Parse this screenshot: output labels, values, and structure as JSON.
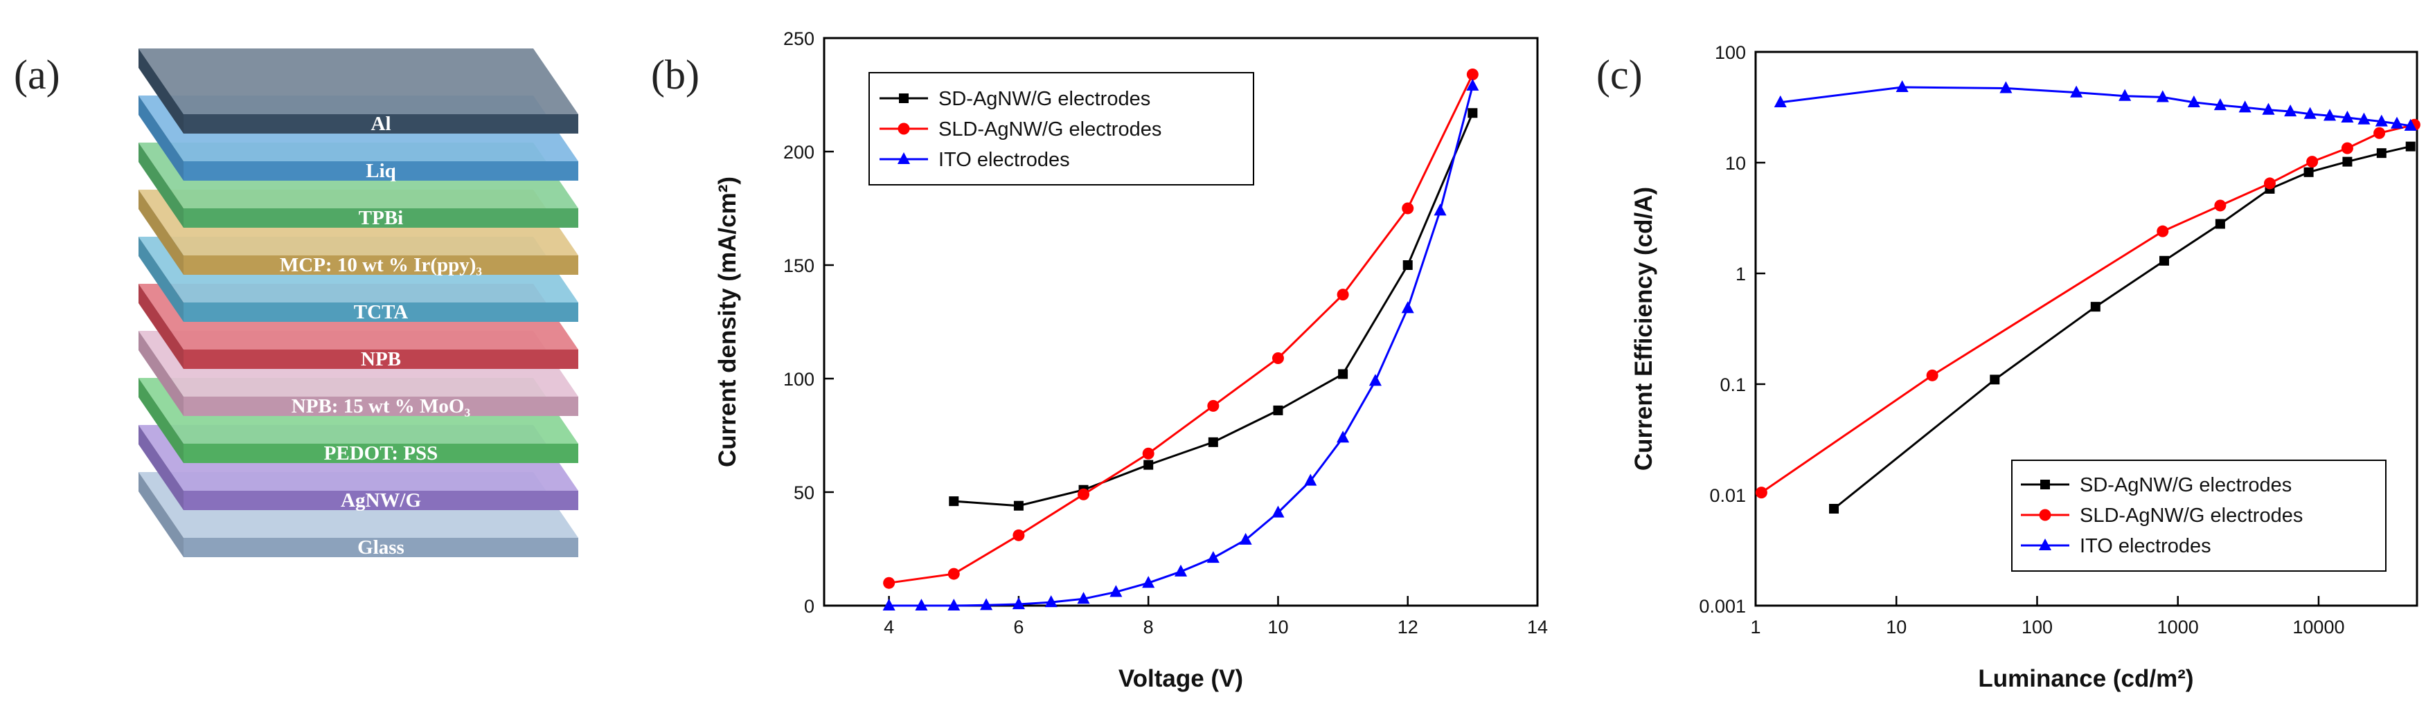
{
  "figure": {
    "panel_a": "(a)",
    "panel_b": "(b)",
    "panel_c": "(c)"
  },
  "device_stack": {
    "layers": [
      {
        "label": "Al",
        "color": "#3f566e"
      },
      {
        "label": "Liq",
        "color": "#4f9ed9"
      },
      {
        "label": "TPBi",
        "color": "#5cbf73"
      },
      {
        "label": "MCP: 10 wt % Ir(ppy)₃",
        "color": "#d6b15e"
      },
      {
        "label": "TCTA",
        "color": "#5cb2d4"
      },
      {
        "label": "NPB",
        "color": "#d84c5a"
      },
      {
        "label": "NPB: 15 wt % MoO₃",
        "color": "#d9a9c4"
      },
      {
        "label": "PEDOT: PSS",
        "color": "#5cc66e"
      },
      {
        "label": "AgNW/G",
        "color": "#9a7fd6"
      },
      {
        "label": "Glass",
        "color": "#9fb8d6"
      }
    ]
  },
  "chart_data": [
    {
      "type": "line",
      "panel": "(b)",
      "title": "",
      "xlabel": "Voltage (V)",
      "ylabel": "Current density (mA/cm²)",
      "xlim": [
        3,
        14
      ],
      "ylim": [
        0,
        250
      ],
      "xticks": [
        4,
        6,
        8,
        10,
        12,
        14
      ],
      "yticks": [
        0,
        50,
        100,
        150,
        200,
        250
      ],
      "xtick_labels": [
        "4",
        "6",
        "8",
        "10",
        "12",
        "14"
      ],
      "ytick_labels": [
        "0",
        "50",
        "100",
        "150",
        "200",
        "250"
      ],
      "legend_position": "top-left",
      "series": [
        {
          "name": "SD-AgNW/G electrodes",
          "color": "#000000",
          "marker": "square",
          "x": [
            5,
            6,
            7,
            8,
            9,
            10,
            11,
            12,
            13
          ],
          "y": [
            46,
            44,
            51,
            62,
            72,
            86,
            102,
            150,
            217
          ]
        },
        {
          "name": "SLD-AgNW/G electrodes",
          "color": "#ff0000",
          "marker": "circle",
          "x": [
            4,
            5,
            6,
            7,
            8,
            9,
            10,
            11,
            12,
            13
          ],
          "y": [
            10,
            14,
            31,
            49,
            67,
            88,
            109,
            137,
            175,
            234
          ]
        },
        {
          "name": "ITO electrodes",
          "color": "#0000ff",
          "marker": "triangle",
          "x": [
            4,
            4.5,
            5,
            5.5,
            6,
            6.5,
            7,
            7.5,
            8,
            8.5,
            9,
            9.5,
            10,
            10.5,
            11,
            11.5,
            12,
            12.5,
            13
          ],
          "y": [
            0,
            0,
            0,
            0.2,
            0.6,
            1.5,
            3,
            6,
            10,
            15,
            21,
            29,
            41,
            55,
            74,
            99,
            131,
            174,
            229
          ]
        }
      ]
    },
    {
      "type": "line",
      "panel": "(c)",
      "title": "",
      "xlabel": "Luminance (cd/m²)",
      "ylabel": "Current Efficiency (cd/A)",
      "xscale": "log",
      "yscale": "log",
      "xlim": [
        1,
        50000
      ],
      "ylim": [
        0.001,
        100
      ],
      "xticks": [
        1,
        10,
        100,
        1000,
        10000
      ],
      "yticks": [
        0.001,
        0.01,
        0.1,
        1,
        10,
        100
      ],
      "xtick_labels": [
        "1",
        "10",
        "100",
        "1000",
        "10000"
      ],
      "ytick_labels": [
        "0.001",
        "0.01",
        "0.1",
        "1",
        "10",
        "100"
      ],
      "legend_position": "bottom-right",
      "series": [
        {
          "name": "SD-AgNW/G electrodes",
          "color": "#000000",
          "marker": "square",
          "x": [
            3.6,
            50,
            260,
            800,
            2000,
            4500,
            8500,
            16000,
            28000,
            45000
          ],
          "y": [
            0.0075,
            0.11,
            0.5,
            1.3,
            2.8,
            5.8,
            8.2,
            10.2,
            12.2,
            14
          ]
        },
        {
          "name": "SLD-AgNW/G electrodes",
          "color": "#ff0000",
          "marker": "circle",
          "x": [
            1.1,
            18,
            780,
            2000,
            4500,
            9000,
            16000,
            27000,
            48000
          ],
          "y": [
            0.0105,
            0.12,
            2.4,
            4.1,
            6.5,
            10.2,
            13.5,
            18.5,
            22
          ]
        },
        {
          "name": "ITO electrodes",
          "color": "#0000ff",
          "marker": "triangle",
          "x": [
            1.5,
            11,
            60,
            190,
            420,
            780,
            1300,
            2000,
            3000,
            4400,
            6300,
            8700,
            12000,
            16000,
            21000,
            28000,
            36000,
            45000
          ],
          "y": [
            35,
            48,
            47,
            43,
            40,
            39,
            35,
            33,
            31.5,
            30,
            29,
            27.5,
            26.5,
            25.5,
            24.5,
            23.5,
            22.5,
            21.5
          ]
        }
      ]
    }
  ]
}
